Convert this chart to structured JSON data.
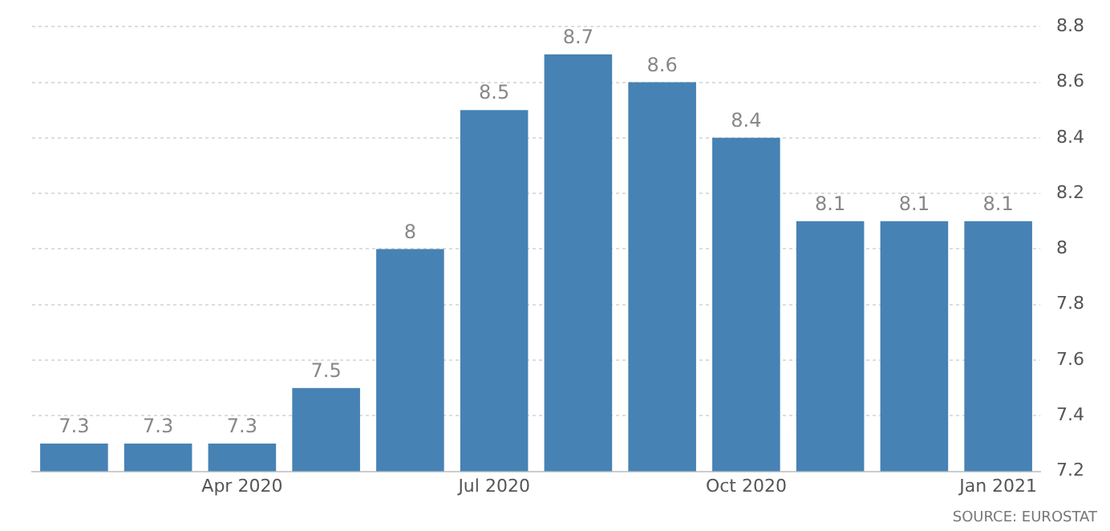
{
  "chart_data": {
    "type": "bar",
    "categories": [
      null,
      null,
      "Apr 2020",
      null,
      null,
      "Jul 2020",
      null,
      null,
      "Oct 2020",
      null,
      null,
      "Jan 2021"
    ],
    "values": [
      7.3,
      7.3,
      7.3,
      7.5,
      8,
      8.5,
      8.7,
      8.6,
      8.4,
      8.1,
      8.1,
      8.1
    ],
    "color": "#4682b4",
    "ylim": [
      7.2,
      8.8
    ],
    "yticks": [
      7.2,
      7.4,
      7.6,
      7.8,
      8,
      8.2,
      8.4,
      8.6,
      8.8
    ],
    "grid": "y",
    "data_labels": true,
    "legend": false,
    "annotations": [
      "SOURCE: EUROSTAT"
    ]
  }
}
